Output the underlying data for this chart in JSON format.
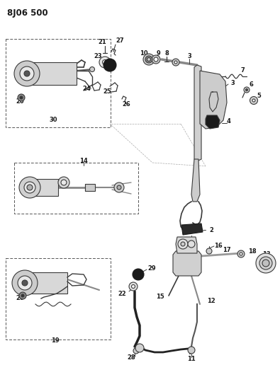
{
  "title": "8J06 500",
  "bg_color": "#ffffff",
  "lc": "#3a3a3a",
  "tc": "#1a1a1a",
  "fig_width": 3.95,
  "fig_height": 5.33,
  "dpi": 100
}
